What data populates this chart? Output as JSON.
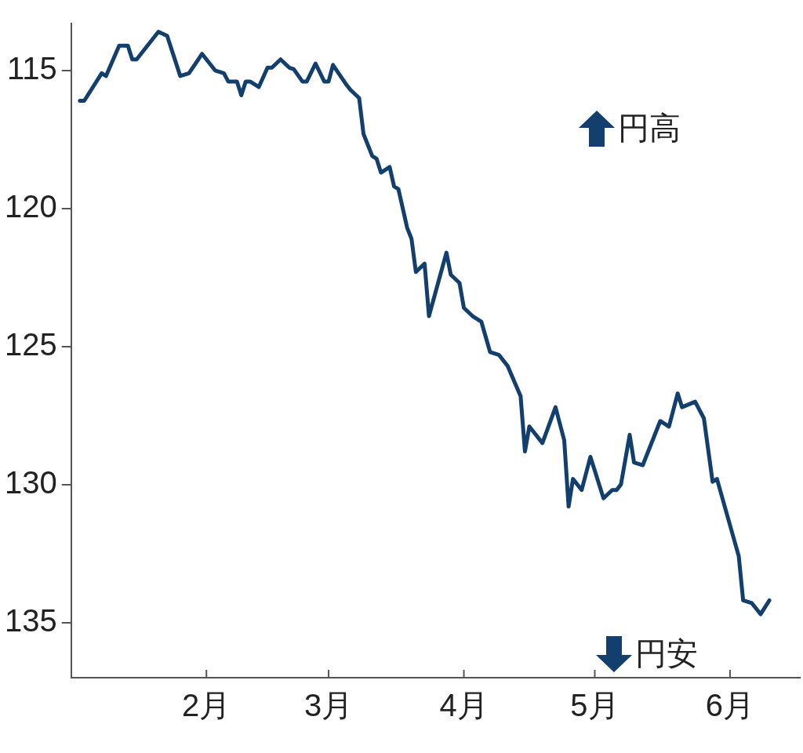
{
  "chart_data": {
    "type": "line",
    "marker": "none",
    "legend": false,
    "annotations": [
      "円高",
      "円安"
    ],
    "xlim": [
      "--01-01",
      "--06-17"
    ],
    "xticks": [
      {
        "value": "--02-01",
        "label": "2月"
      },
      {
        "value": "--03-01",
        "label": "3月"
      },
      {
        "value": "--04-01",
        "label": "4月"
      },
      {
        "value": "--05-01",
        "label": "5月"
      },
      {
        "value": "--06-01",
        "label": "6月"
      }
    ],
    "ylim": [
      137,
      113.3
    ],
    "yticks": [
      115,
      120,
      125,
      130,
      135
    ],
    "series": [
      {
        "color": "#133f6e",
        "x": [
          "--01-03",
          "--01-04",
          "--01-08",
          "--01-09",
          "--01-12",
          "--01-14",
          "--01-15",
          "--01-16",
          "--01-21",
          "--01-23",
          "--01-26",
          "--01-28",
          "--01-31",
          "--02-03",
          "--02-05",
          "--02-06",
          "--02-08",
          "--02-09",
          "--02-10",
          "--02-11",
          "--02-13",
          "--02-15",
          "--02-16",
          "--02-18",
          "--02-20",
          "--02-21",
          "--02-23",
          "--02-24",
          "--02-26",
          "--02-28",
          "--03-01",
          "--03-02",
          "--03-05",
          "--03-06",
          "--03-08",
          "--03-09",
          "--03-11",
          "--03-12",
          "--03-13",
          "--03-15",
          "--03-16",
          "--03-17",
          "--03-19",
          "--03-20",
          "--03-21",
          "--03-23",
          "--03-24",
          "--03-28",
          "--03-29",
          "--03-31",
          "--04-01",
          "--04-03",
          "--04-05",
          "--04-07",
          "--04-09",
          "--04-11",
          "--04-14",
          "--04-15",
          "--04-16",
          "--04-19",
          "--04-22",
          "--04-24",
          "--04-25",
          "--04-26",
          "--04-28",
          "--04-30",
          "--05-03",
          "--05-05",
          "--05-06",
          "--05-07",
          "--05-09",
          "--05-10",
          "--05-12",
          "--05-16",
          "--05-18",
          "--05-20",
          "--05-21",
          "--05-24",
          "--05-26",
          "--05-28",
          "--05-29",
          "--06-03",
          "--06-04",
          "--06-06",
          "--06-08",
          "--06-10"
        ],
        "values": [
          116.1,
          116.1,
          115.1,
          115.2,
          114.1,
          114.1,
          114.6,
          114.6,
          113.6,
          113.75,
          115.2,
          115.1,
          114.4,
          115.0,
          115.1,
          115.4,
          115.4,
          115.9,
          115.4,
          115.4,
          115.6,
          114.9,
          114.9,
          114.6,
          114.9,
          114.95,
          115.4,
          115.4,
          114.75,
          115.4,
          115.4,
          114.8,
          115.5,
          115.7,
          116.0,
          117.3,
          118.1,
          118.2,
          118.7,
          118.5,
          119.2,
          119.3,
          120.7,
          121.1,
          122.3,
          122.0,
          123.9,
          121.6,
          122.4,
          122.7,
          123.6,
          123.9,
          124.1,
          125.2,
          125.3,
          125.7,
          126.8,
          128.8,
          127.9,
          128.5,
          127.2,
          128.4,
          130.8,
          129.8,
          130.2,
          129.0,
          130.5,
          130.2,
          130.2,
          130.0,
          128.2,
          129.2,
          129.3,
          127.7,
          127.9,
          126.7,
          127.2,
          127.0,
          127.6,
          129.9,
          129.8,
          132.6,
          134.2,
          134.3,
          134.7,
          134.2
        ]
      }
    ]
  }
}
